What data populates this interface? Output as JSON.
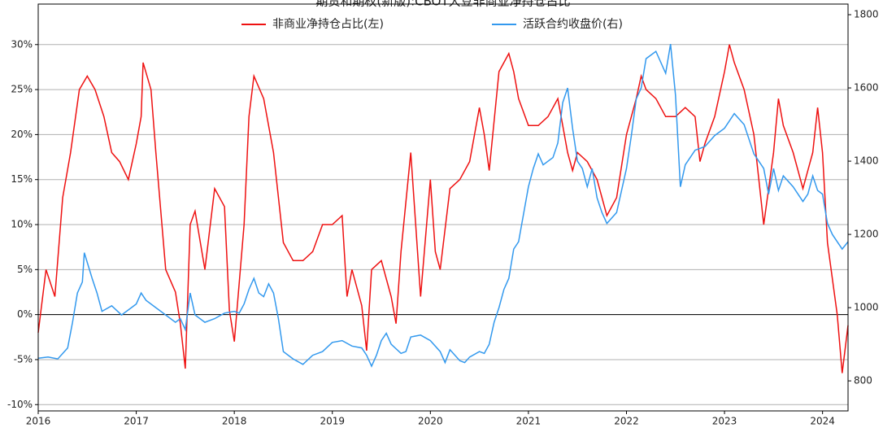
{
  "chart_data": {
    "type": "line",
    "title": "期货和期权(新版):CBOT大豆非商业净持仓占比",
    "xlim": [
      2016,
      2024.26
    ],
    "xticks": [
      2016,
      2017,
      2018,
      2019,
      2020,
      2021,
      2022,
      2023,
      2024
    ],
    "ylim": [
      -10.7,
      34.5
    ],
    "yticks": [
      {
        "value": -10,
        "label": "-10%"
      },
      {
        "value": -5,
        "label": "-5%"
      },
      {
        "value": 0,
        "label": "0%"
      },
      {
        "value": 5,
        "label": "5%"
      },
      {
        "value": 10,
        "label": "10%"
      },
      {
        "value": 15,
        "label": "15%"
      },
      {
        "value": 20,
        "label": "20%"
      },
      {
        "value": 25,
        "label": "25%"
      },
      {
        "value": 30,
        "label": "30%"
      }
    ],
    "y2lim": [
      718,
      1829
    ],
    "y2ticks": [
      800,
      1000,
      1200,
      1400,
      1600,
      1800
    ],
    "grid": true,
    "legend": "top",
    "series": [
      {
        "name": "非商业净持仓占比(左)",
        "color": "#ee1111",
        "x": [
          2016.0,
          2016.08,
          2016.17,
          2016.25,
          2016.33,
          2016.42,
          2016.5,
          2016.58,
          2016.67,
          2016.75,
          2016.83,
          2016.92,
          2017.0,
          2017.05,
          2017.07,
          2017.15,
          2017.2,
          2017.3,
          2017.4,
          2017.45,
          2017.5,
          2017.55,
          2017.6,
          2017.7,
          2017.8,
          2017.9,
          2017.95,
          2018.0,
          2018.1,
          2018.15,
          2018.2,
          2018.3,
          2018.4,
          2018.5,
          2018.6,
          2018.7,
          2018.8,
          2018.9,
          2019.0,
          2019.1,
          2019.15,
          2019.2,
          2019.3,
          2019.35,
          2019.4,
          2019.5,
          2019.6,
          2019.65,
          2019.7,
          2019.8,
          2019.9,
          2020.0,
          2020.05,
          2020.1,
          2020.2,
          2020.3,
          2020.4,
          2020.5,
          2020.55,
          2020.6,
          2020.7,
          2020.8,
          2020.85,
          2020.9,
          2021.0,
          2021.1,
          2021.2,
          2021.3,
          2021.4,
          2021.45,
          2021.5,
          2021.6,
          2021.7,
          2021.8,
          2021.9,
          2022.0,
          2022.1,
          2022.15,
          2022.2,
          2022.3,
          2022.4,
          2022.5,
          2022.6,
          2022.7,
          2022.75,
          2022.8,
          2022.9,
          2023.0,
          2023.05,
          2023.1,
          2023.2,
          2023.3,
          2023.35,
          2023.4,
          2023.5,
          2023.55,
          2023.6,
          2023.7,
          2023.8,
          2023.9,
          2023.95,
          2024.0,
          2024.05,
          2024.1,
          2024.15,
          2024.2,
          2024.26
        ],
        "values": [
          -2,
          5,
          2,
          13,
          18,
          25,
          26.5,
          25,
          22,
          18,
          17,
          15,
          19,
          22,
          28,
          25,
          18,
          5,
          2.5,
          -1,
          -6,
          10,
          11.5,
          5,
          14,
          12,
          0.5,
          -3,
          10,
          22,
          26.5,
          24,
          18,
          8,
          6,
          6,
          7,
          10,
          10,
          11,
          2,
          5,
          1,
          -4,
          5,
          6,
          2,
          -1,
          7,
          18,
          2,
          15,
          7,
          5,
          14,
          15,
          17,
          23,
          20,
          16,
          27,
          29,
          27,
          24,
          21,
          21,
          22,
          24,
          18,
          16,
          18,
          17,
          15,
          11,
          13,
          20,
          24,
          26.5,
          25,
          24,
          22,
          22,
          23,
          22,
          17,
          19,
          22,
          27,
          30,
          28,
          25,
          20,
          15,
          10,
          18,
          24,
          21,
          18,
          14,
          18,
          23,
          18,
          8,
          4,
          0,
          -6.5,
          -1.2
        ]
      },
      {
        "name": "活跃合约收盘价(右)",
        "color": "#3399ee",
        "axis": "y2",
        "x": [
          2016.0,
          2016.1,
          2016.2,
          2016.3,
          2016.35,
          2016.4,
          2016.45,
          2016.47,
          2016.55,
          2016.6,
          2016.65,
          2016.75,
          2016.85,
          2016.95,
          2017.0,
          2017.05,
          2017.1,
          2017.2,
          2017.3,
          2017.4,
          2017.45,
          2017.5,
          2017.55,
          2017.6,
          2017.7,
          2017.8,
          2017.9,
          2018.0,
          2018.05,
          2018.1,
          2018.15,
          2018.2,
          2018.25,
          2018.3,
          2018.35,
          2018.4,
          2018.45,
          2018.5,
          2018.55,
          2018.6,
          2018.7,
          2018.8,
          2018.9,
          2019.0,
          2019.1,
          2019.2,
          2019.3,
          2019.35,
          2019.4,
          2019.45,
          2019.5,
          2019.55,
          2019.6,
          2019.7,
          2019.75,
          2019.8,
          2019.9,
          2020.0,
          2020.1,
          2020.15,
          2020.2,
          2020.3,
          2020.35,
          2020.4,
          2020.5,
          2020.55,
          2020.6,
          2020.65,
          2020.7,
          2020.75,
          2020.8,
          2020.85,
          2020.9,
          2021.0,
          2021.05,
          2021.1,
          2021.15,
          2021.25,
          2021.3,
          2021.35,
          2021.4,
          2021.45,
          2021.5,
          2021.55,
          2021.6,
          2021.65,
          2021.7,
          2021.75,
          2021.8,
          2021.9,
          2022.0,
          2022.05,
          2022.1,
          2022.15,
          2022.2,
          2022.3,
          2022.4,
          2022.45,
          2022.5,
          2022.55,
          2022.6,
          2022.7,
          2022.8,
          2022.9,
          2023.0,
          2023.1,
          2023.2,
          2023.3,
          2023.4,
          2023.45,
          2023.5,
          2023.55,
          2023.6,
          2023.7,
          2023.8,
          2023.85,
          2023.9,
          2023.95,
          2024.0,
          2024.05,
          2024.1,
          2024.15,
          2024.2,
          2024.26
        ],
        "values": [
          862,
          865,
          860,
          890,
          960,
          1040,
          1070,
          1150,
          1080,
          1040,
          990,
          1005,
          980,
          1000,
          1010,
          1040,
          1020,
          1000,
          980,
          960,
          970,
          940,
          1040,
          980,
          960,
          970,
          985,
          990,
          985,
          1010,
          1050,
          1080,
          1040,
          1030,
          1065,
          1040,
          970,
          880,
          870,
          860,
          845,
          870,
          880,
          905,
          910,
          895,
          890,
          870,
          840,
          870,
          910,
          930,
          900,
          875,
          880,
          920,
          925,
          910,
          880,
          850,
          885,
          855,
          850,
          865,
          880,
          875,
          900,
          960,
          1000,
          1050,
          1080,
          1160,
          1180,
          1330,
          1380,
          1420,
          1390,
          1410,
          1450,
          1560,
          1600,
          1490,
          1400,
          1380,
          1330,
          1380,
          1300,
          1260,
          1230,
          1260,
          1380,
          1470,
          1570,
          1600,
          1680,
          1700,
          1640,
          1720,
          1580,
          1330,
          1390,
          1430,
          1440,
          1470,
          1490,
          1530,
          1500,
          1420,
          1380,
          1310,
          1380,
          1320,
          1360,
          1330,
          1290,
          1310,
          1360,
          1320,
          1310,
          1230,
          1200,
          1180,
          1160,
          1180
        ]
      }
    ]
  }
}
